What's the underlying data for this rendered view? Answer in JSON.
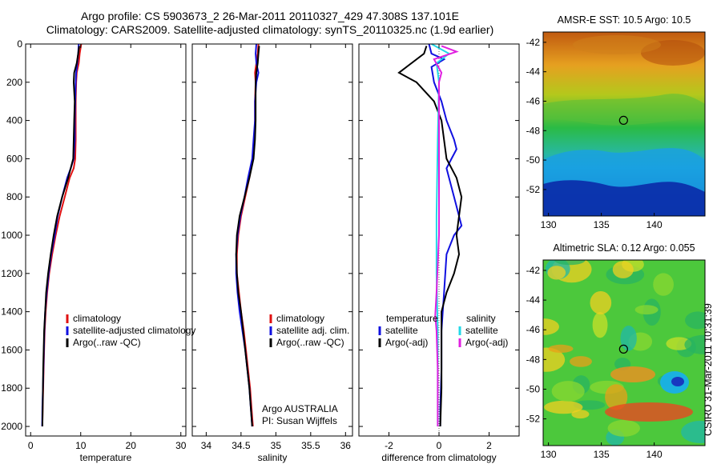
{
  "header": {
    "title_line1": "Argo profile: CS 5903673_2 26-Mar-2011 20110327_429 47.308S 137.101E",
    "title_line2": "Climatology: CARS2009. Satellite-adjusted climatology: synTS_20110325.nc (1.9d earlier)"
  },
  "credit": "CSIRO 31-Mar-2011 10:31:39",
  "colors": {
    "climatology": "#e01010",
    "satellite": "#1010e0",
    "argo": "#000000",
    "satellite_salinity": "#22d8e8",
    "argo_adj_salinity": "#e020e0"
  },
  "chart_data": [
    {
      "id": "temperature",
      "type": "line",
      "xlabel": "temperature",
      "xlim": [
        -1,
        31
      ],
      "xticks": [
        0,
        10,
        20,
        30
      ],
      "ylim": [
        2050,
        0
      ],
      "yticks": [
        0,
        200,
        400,
        600,
        800,
        1000,
        1200,
        1400,
        1600,
        1800,
        2000
      ],
      "legend": {
        "placement": "lower-right",
        "entries": [
          "climatology",
          "satellite-adjusted climatology",
          "Argo(..raw -QC)"
        ]
      },
      "series": [
        {
          "name": "climatology",
          "color": "#e01010",
          "points": [
            [
              10.1,
              0
            ],
            [
              9.8,
              50
            ],
            [
              9.6,
              100
            ],
            [
              9.2,
              150
            ],
            [
              9.1,
              200
            ],
            [
              9.0,
              300
            ],
            [
              9.0,
              400
            ],
            [
              9.0,
              500
            ],
            [
              8.9,
              600
            ],
            [
              8.6,
              650
            ],
            [
              7.8,
              700
            ],
            [
              6.8,
              800
            ],
            [
              5.8,
              900
            ],
            [
              5.0,
              1000
            ],
            [
              4.3,
              1100
            ],
            [
              3.7,
              1200
            ],
            [
              3.3,
              1300
            ],
            [
              3.0,
              1400
            ],
            [
              2.8,
              1500
            ],
            [
              2.7,
              1600
            ],
            [
              2.6,
              1700
            ],
            [
              2.5,
              1800
            ],
            [
              2.4,
              1900
            ],
            [
              2.35,
              2000
            ]
          ]
        },
        {
          "name": "satellite-adjusted climatology",
          "color": "#1010e0",
          "points": [
            [
              9.6,
              0
            ],
            [
              9.5,
              50
            ],
            [
              9.3,
              100
            ],
            [
              9.1,
              150
            ],
            [
              9.0,
              200
            ],
            [
              8.9,
              300
            ],
            [
              8.8,
              400
            ],
            [
              8.8,
              500
            ],
            [
              8.6,
              600
            ],
            [
              8.0,
              650
            ],
            [
              7.3,
              700
            ],
            [
              6.3,
              800
            ],
            [
              5.4,
              900
            ],
            [
              4.8,
              1000
            ],
            [
              4.1,
              1100
            ],
            [
              3.6,
              1200
            ],
            [
              3.2,
              1300
            ],
            [
              2.9,
              1400
            ],
            [
              2.75,
              1500
            ],
            [
              2.65,
              1600
            ],
            [
              2.55,
              1700
            ],
            [
              2.45,
              1800
            ],
            [
              2.35,
              1900
            ],
            [
              2.3,
              2000
            ]
          ]
        },
        {
          "name": "Argo(..raw -QC)",
          "color": "#000000",
          "points": [
            [
              9.7,
              10
            ],
            [
              9.5,
              50
            ],
            [
              9.2,
              100
            ],
            [
              8.7,
              150
            ],
            [
              8.6,
              200
            ],
            [
              8.8,
              300
            ],
            [
              8.7,
              400
            ],
            [
              8.6,
              500
            ],
            [
              8.5,
              600
            ],
            [
              7.5,
              700
            ],
            [
              6.3,
              800
            ],
            [
              5.3,
              900
            ],
            [
              4.6,
              1000
            ],
            [
              4.0,
              1100
            ],
            [
              3.5,
              1200
            ],
            [
              3.1,
              1300
            ],
            [
              2.9,
              1400
            ],
            [
              2.7,
              1500
            ],
            [
              2.6,
              1600
            ],
            [
              2.5,
              1700
            ],
            [
              2.45,
              1800
            ],
            [
              2.4,
              1900
            ],
            [
              2.35,
              2000
            ]
          ]
        }
      ]
    },
    {
      "id": "salinity",
      "type": "line",
      "xlabel": "salinity",
      "xlim": [
        33.8,
        36.1
      ],
      "xticks": [
        34,
        34.5,
        35,
        35.5,
        36
      ],
      "ylim": [
        2050,
        0
      ],
      "yticks": [
        0,
        200,
        400,
        600,
        800,
        1000,
        1200,
        1400,
        1600,
        1800,
        2000
      ],
      "legend": {
        "placement": "lower-right",
        "entries": [
          "climatology",
          "satellite adj. clim.",
          "Argo(..raw -QC)"
        ]
      },
      "annotation": [
        "Argo AUSTRALIA",
        "PI: Susan Wijffels"
      ],
      "series": [
        {
          "name": "climatology",
          "color": "#e01010",
          "points": [
            [
              34.75,
              0
            ],
            [
              34.74,
              50
            ],
            [
              34.72,
              100
            ],
            [
              34.7,
              150
            ],
            [
              34.71,
              200
            ],
            [
              34.7,
              300
            ],
            [
              34.7,
              400
            ],
            [
              34.69,
              500
            ],
            [
              34.67,
              600
            ],
            [
              34.62,
              700
            ],
            [
              34.56,
              800
            ],
            [
              34.5,
              900
            ],
            [
              34.46,
              1000
            ],
            [
              34.44,
              1100
            ],
            [
              34.44,
              1200
            ],
            [
              34.47,
              1300
            ],
            [
              34.5,
              1400
            ],
            [
              34.54,
              1500
            ],
            [
              34.57,
              1600
            ],
            [
              34.6,
              1700
            ],
            [
              34.63,
              1800
            ],
            [
              34.65,
              1900
            ],
            [
              34.67,
              2000
            ]
          ]
        },
        {
          "name": "satellite adj. clim.",
          "color": "#1010e0",
          "points": [
            [
              34.72,
              0
            ],
            [
              34.71,
              50
            ],
            [
              34.72,
              100
            ],
            [
              34.75,
              150
            ],
            [
              34.72,
              200
            ],
            [
              34.7,
              300
            ],
            [
              34.7,
              400
            ],
            [
              34.68,
              500
            ],
            [
              34.66,
              600
            ],
            [
              34.6,
              700
            ],
            [
              34.55,
              800
            ],
            [
              34.49,
              900
            ],
            [
              34.45,
              1000
            ],
            [
              34.43,
              1100
            ],
            [
              34.43,
              1200
            ],
            [
              34.45,
              1300
            ],
            [
              34.48,
              1400
            ],
            [
              34.52,
              1500
            ],
            [
              34.56,
              1600
            ],
            [
              34.59,
              1700
            ],
            [
              34.62,
              1800
            ],
            [
              34.64,
              1900
            ],
            [
              34.66,
              2000
            ]
          ]
        },
        {
          "name": "Argo(..raw -QC)",
          "color": "#000000",
          "points": [
            [
              34.76,
              10
            ],
            [
              34.75,
              50
            ],
            [
              34.74,
              100
            ],
            [
              34.72,
              150
            ],
            [
              34.71,
              200
            ],
            [
              34.71,
              300
            ],
            [
              34.71,
              400
            ],
            [
              34.7,
              500
            ],
            [
              34.68,
              600
            ],
            [
              34.62,
              700
            ],
            [
              34.55,
              800
            ],
            [
              34.48,
              900
            ],
            [
              34.44,
              1000
            ],
            [
              34.43,
              1100
            ],
            [
              34.44,
              1200
            ],
            [
              34.46,
              1300
            ],
            [
              34.5,
              1400
            ],
            [
              34.53,
              1500
            ],
            [
              34.56,
              1600
            ],
            [
              34.59,
              1700
            ],
            [
              34.62,
              1800
            ],
            [
              34.64,
              1900
            ],
            [
              34.66,
              2000
            ]
          ]
        }
      ]
    },
    {
      "id": "difference",
      "type": "line",
      "xlabel": "difference from climatology",
      "xlim": [
        -3.2,
        3.2
      ],
      "xticks": [
        -2,
        0,
        2
      ],
      "ylim": [
        2050,
        0
      ],
      "yticks": [
        0,
        200,
        400,
        600,
        800,
        1000,
        1200,
        1400,
        1600,
        1800,
        2000
      ],
      "legend": {
        "placement": "lower-center",
        "groups": [
          {
            "heading": "temperature",
            "entries": [
              "satellite",
              "Argo(-adj)"
            ]
          },
          {
            "heading": "salinity",
            "entries": [
              "satellite",
              "Argo(-adj)"
            ]
          }
        ]
      },
      "series": [
        {
          "name": "temperature satellite",
          "color": "#1010e0",
          "points": [
            [
              -0.4,
              0
            ],
            [
              -0.3,
              50
            ],
            [
              0.2,
              80
            ],
            [
              -0.3,
              120
            ],
            [
              -0.2,
              200
            ],
            [
              0.1,
              300
            ],
            [
              0.3,
              400
            ],
            [
              0.6,
              500
            ],
            [
              0.7,
              550
            ],
            [
              0.5,
              600
            ],
            [
              0.3,
              650
            ],
            [
              0.4,
              700
            ],
            [
              0.6,
              800
            ],
            [
              0.8,
              900
            ],
            [
              0.9,
              950
            ],
            [
              0.6,
              1000
            ],
            [
              0.3,
              1100
            ],
            [
              0.2,
              1300
            ],
            [
              0.1,
              1500
            ],
            [
              0.1,
              1700
            ],
            [
              0.05,
              1900
            ],
            [
              0.05,
              2000
            ]
          ]
        },
        {
          "name": "temperature Argo(-adj)",
          "color": "#000000",
          "points": [
            [
              -0.5,
              10
            ],
            [
              -0.6,
              50
            ],
            [
              -1.6,
              150
            ],
            [
              -0.9,
              200
            ],
            [
              -0.2,
              300
            ],
            [
              0.1,
              400
            ],
            [
              0.3,
              600
            ],
            [
              0.7,
              700
            ],
            [
              0.9,
              800
            ],
            [
              0.8,
              900
            ],
            [
              0.7,
              1000
            ],
            [
              0.8,
              1100
            ],
            [
              0.6,
              1200
            ],
            [
              0.3,
              1300
            ],
            [
              0.1,
              1400
            ],
            [
              0.1,
              1600
            ],
            [
              0.1,
              1800
            ],
            [
              0.05,
              2000
            ]
          ]
        },
        {
          "name": "salinity satellite",
          "color": "#22d8e8",
          "points": [
            [
              -0.3,
              0
            ],
            [
              0.4,
              50
            ],
            [
              -0.1,
              100
            ],
            [
              0.0,
              200
            ],
            [
              -0.05,
              500
            ],
            [
              -0.1,
              900
            ],
            [
              -0.1,
              1200
            ],
            [
              -0.05,
              1500
            ],
            [
              -0.05,
              1700
            ],
            [
              -0.05,
              2000
            ]
          ]
        },
        {
          "name": "salinity Argo(-adj)",
          "color": "#e020e0",
          "points": [
            [
              0.1,
              10
            ],
            [
              0.7,
              40
            ],
            [
              -0.2,
              80
            ],
            [
              0.1,
              150
            ],
            [
              0.0,
              200
            ],
            [
              0.0,
              500
            ],
            [
              0.0,
              1000
            ],
            [
              -0.1,
              1300
            ],
            [
              -0.15,
              1420
            ],
            [
              -0.1,
              1500
            ],
            [
              -0.05,
              1700
            ],
            [
              -0.05,
              2000
            ]
          ]
        }
      ]
    },
    {
      "id": "sst-map",
      "type": "heatmap",
      "title": "AMSR-E SST: 10.5 Argo: 10.5",
      "xlim": [
        129.5,
        144.8
      ],
      "ylim": [
        -53.8,
        -41.3
      ],
      "xticks": [
        130,
        135,
        140
      ],
      "yticks": [
        -42,
        -44,
        -46,
        -48,
        -50,
        -52
      ],
      "marker": [
        137.1,
        -47.3
      ]
    },
    {
      "id": "sla-map",
      "type": "heatmap",
      "title": "Altimetric SLA: 0.12 Argo: 0.055",
      "xlim": [
        129.5,
        144.8
      ],
      "ylim": [
        -53.8,
        -41.3
      ],
      "xticks": [
        130,
        135,
        140
      ],
      "yticks": [
        -42,
        -44,
        -46,
        -48,
        -50,
        -52
      ],
      "marker": [
        137.1,
        -47.3
      ]
    }
  ]
}
